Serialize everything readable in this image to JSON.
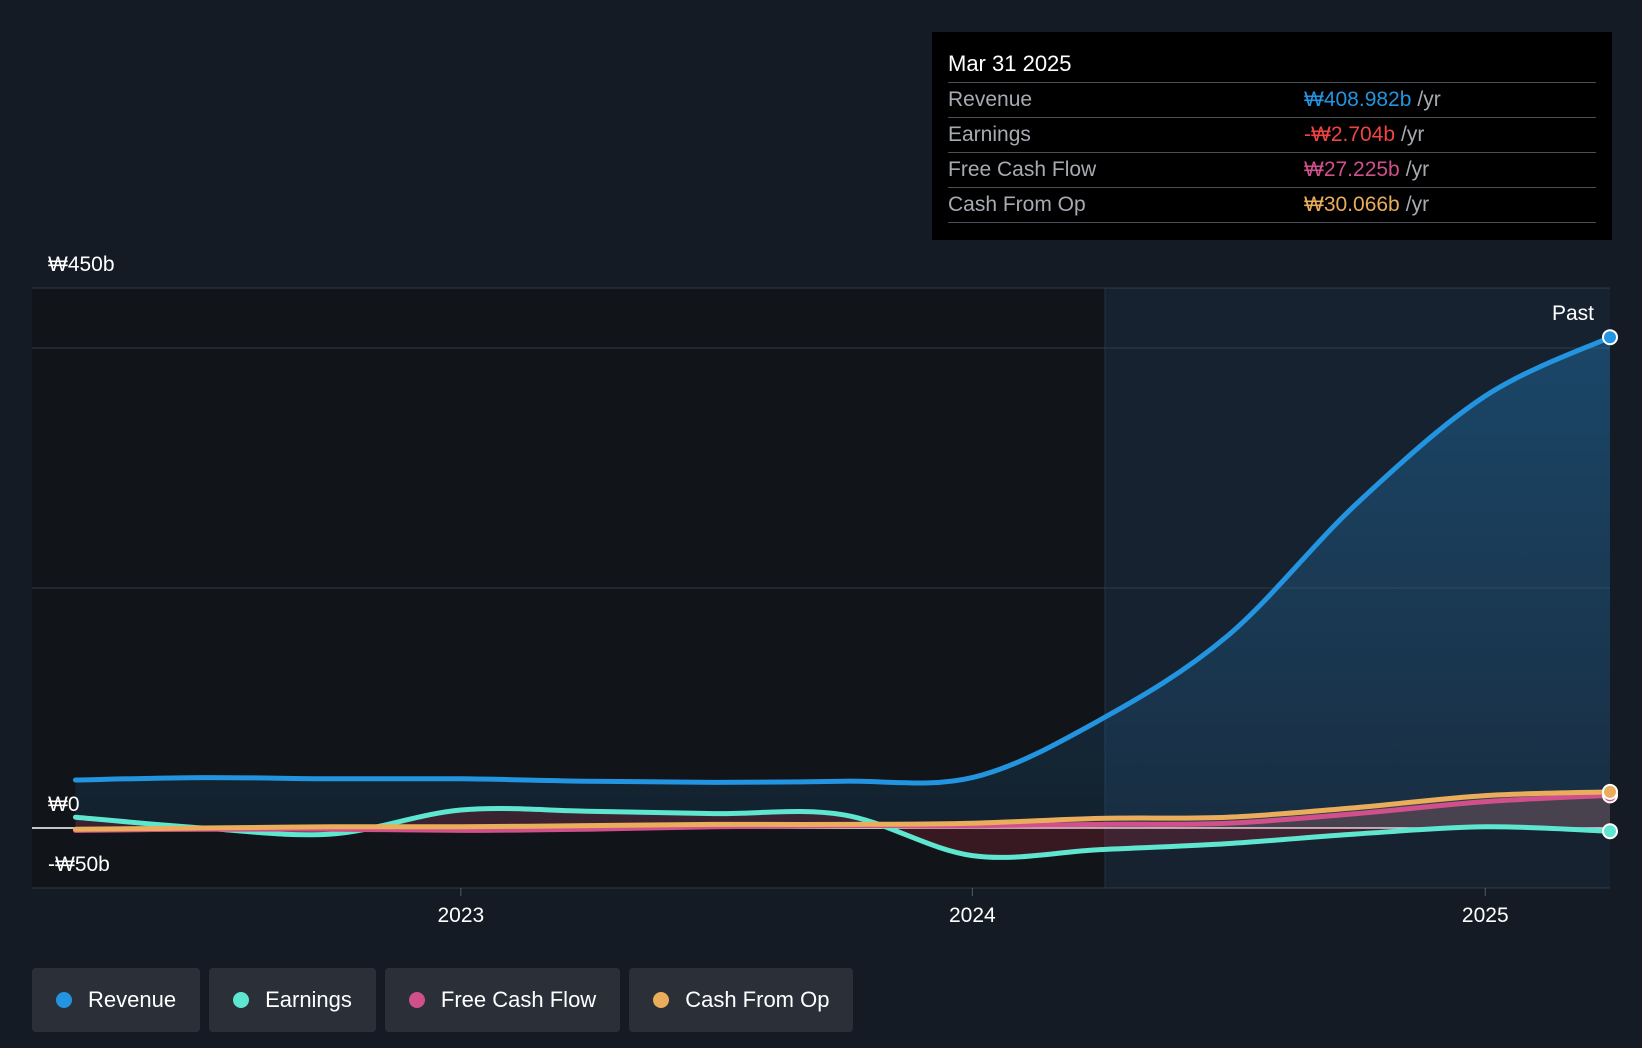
{
  "chart_data": {
    "type": "line",
    "y_tick_labels": [
      "₩450b",
      "₩0",
      "-₩50b"
    ],
    "x_tick_labels": [
      "2023",
      "2024",
      "2025"
    ],
    "ylim": [
      -50,
      450
    ],
    "past_label": "Past",
    "series": [
      {
        "name": "Revenue",
        "color": "#2394e0",
        "points": [
          [
            "2022-04-01",
            40
          ],
          [
            "2022-07-01",
            42
          ],
          [
            "2022-10-01",
            41
          ],
          [
            "2023-01-01",
            41
          ],
          [
            "2023-04-01",
            39
          ],
          [
            "2023-07-01",
            38
          ],
          [
            "2023-10-01",
            39
          ],
          [
            "2024-01-01",
            42
          ],
          [
            "2024-04-01",
            90
          ],
          [
            "2024-07-01",
            160
          ],
          [
            "2024-10-01",
            270
          ],
          [
            "2025-01-01",
            360
          ],
          [
            "2025-03-31",
            409
          ]
        ]
      },
      {
        "name": "Earnings",
        "color": "#5ee6d0",
        "points": [
          [
            "2022-04-01",
            9
          ],
          [
            "2022-07-01",
            0
          ],
          [
            "2022-10-01",
            -5
          ],
          [
            "2023-01-01",
            15
          ],
          [
            "2023-04-01",
            14
          ],
          [
            "2023-07-01",
            12
          ],
          [
            "2023-10-01",
            11
          ],
          [
            "2024-01-01",
            -23
          ],
          [
            "2024-04-01",
            -18
          ],
          [
            "2024-07-01",
            -13
          ],
          [
            "2024-10-01",
            -5
          ],
          [
            "2025-01-01",
            1
          ],
          [
            "2025-03-31",
            -2.7
          ]
        ]
      },
      {
        "name": "Free Cash Flow",
        "color": "#d0508c",
        "points": [
          [
            "2022-04-01",
            -2
          ],
          [
            "2022-07-01",
            -1
          ],
          [
            "2022-10-01",
            -1
          ],
          [
            "2023-01-01",
            -2
          ],
          [
            "2023-04-01",
            -1
          ],
          [
            "2023-07-01",
            1
          ],
          [
            "2023-10-01",
            2
          ],
          [
            "2024-01-01",
            2
          ],
          [
            "2024-04-01",
            3
          ],
          [
            "2024-07-01",
            4
          ],
          [
            "2024-10-01",
            12
          ],
          [
            "2025-01-01",
            22
          ],
          [
            "2025-03-31",
            27.2
          ]
        ]
      },
      {
        "name": "Cash From Op",
        "color": "#e9ad5b",
        "points": [
          [
            "2022-04-01",
            -1
          ],
          [
            "2022-07-01",
            0
          ],
          [
            "2022-10-01",
            1
          ],
          [
            "2023-01-01",
            1
          ],
          [
            "2023-04-01",
            2
          ],
          [
            "2023-07-01",
            3
          ],
          [
            "2023-10-01",
            3
          ],
          [
            "2024-01-01",
            4
          ],
          [
            "2024-04-01",
            8
          ],
          [
            "2024-07-01",
            9
          ],
          [
            "2024-10-01",
            17
          ],
          [
            "2025-01-01",
            27
          ],
          [
            "2025-03-31",
            30.1
          ]
        ]
      }
    ]
  },
  "tooltip": {
    "date": "Mar 31 2025",
    "rows": [
      {
        "label": "Revenue",
        "value": "₩408.982b",
        "unit": "/yr",
        "color": "#2394e0"
      },
      {
        "label": "Earnings",
        "value": "-₩2.704b",
        "unit": "/yr",
        "color": "#ef4444"
      },
      {
        "label": "Free Cash Flow",
        "value": "₩27.225b",
        "unit": "/yr",
        "color": "#d0508c"
      },
      {
        "label": "Cash From Op",
        "value": "₩30.066b",
        "unit": "/yr",
        "color": "#e9ad5b"
      }
    ]
  },
  "legend": [
    {
      "label": "Revenue",
      "color": "#2394e0"
    },
    {
      "label": "Earnings",
      "color": "#5ee6d0"
    },
    {
      "label": "Free Cash Flow",
      "color": "#d0508c"
    },
    {
      "label": "Cash From Op",
      "color": "#e9ad5b"
    }
  ]
}
